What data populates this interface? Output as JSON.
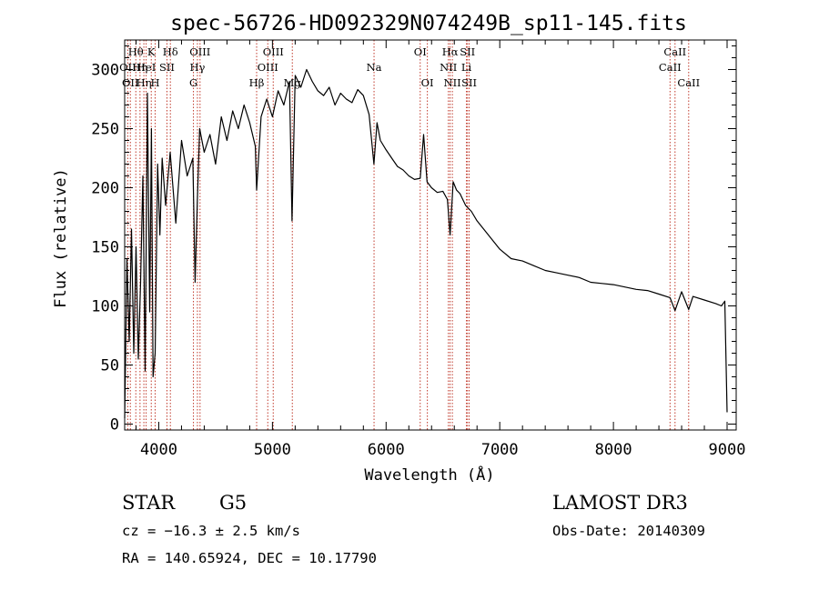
{
  "chart_data": {
    "type": "line",
    "title": "spec-56726-HD092329N074249B_sp11-145.fits",
    "xlabel": "Wavelength (Å)",
    "ylabel": "Flux (relative)",
    "xlim": [
      3700,
      9080
    ],
    "ylim": [
      -5,
      325
    ],
    "x_ticks": [
      4000,
      5000,
      6000,
      7000,
      8000,
      9000
    ],
    "y_ticks": [
      0,
      50,
      100,
      150,
      200,
      250,
      300
    ],
    "series": [
      {
        "x": [
          3700,
          3720,
          3740,
          3760,
          3780,
          3800,
          3820,
          3840,
          3860,
          3880,
          3900,
          3920,
          3935,
          3950,
          3968,
          3990,
          4010,
          4030,
          4060,
          4100,
          4150,
          4200,
          4250,
          4300,
          4320,
          4340,
          4360,
          4400,
          4450,
          4500,
          4550,
          4600,
          4650,
          4700,
          4750,
          4800,
          4850,
          4861,
          4900,
          4950,
          5000,
          5050,
          5100,
          5150,
          5172,
          5200,
          5250,
          5300,
          5350,
          5400,
          5450,
          5500,
          5550,
          5600,
          5650,
          5700,
          5750,
          5800,
          5850,
          5893,
          5920,
          5950,
          6000,
          6050,
          6100,
          6150,
          6200,
          6250,
          6300,
          6330,
          6360,
          6400,
          6450,
          6500,
          6540,
          6563,
          6590,
          6620,
          6650,
          6700,
          6750,
          6800,
          6850,
          6900,
          6950,
          7000,
          7100,
          7200,
          7300,
          7400,
          7500,
          7600,
          7700,
          7800,
          7900,
          8000,
          8100,
          8200,
          8300,
          8400,
          8498,
          8542,
          8600,
          8662,
          8700,
          8800,
          8900,
          8950,
          8980,
          9000
        ],
        "y": [
          5,
          140,
          70,
          165,
          60,
          150,
          55,
          120,
          210,
          45,
          280,
          95,
          250,
          40,
          60,
          220,
          160,
          225,
          185,
          230,
          170,
          240,
          210,
          225,
          120,
          190,
          250,
          230,
          245,
          220,
          260,
          240,
          265,
          250,
          270,
          255,
          235,
          198,
          260,
          275,
          260,
          282,
          270,
          290,
          172,
          295,
          285,
          300,
          290,
          282,
          278,
          285,
          270,
          280,
          275,
          272,
          283,
          278,
          262,
          220,
          255,
          240,
          232,
          225,
          218,
          215,
          210,
          207,
          208,
          245,
          205,
          200,
          196,
          197,
          190,
          160,
          205,
          198,
          195,
          185,
          180,
          172,
          166,
          160,
          154,
          148,
          140,
          138,
          134,
          130,
          128,
          126,
          124,
          120,
          119,
          118,
          116,
          114,
          113,
          110,
          107,
          96,
          112,
          97,
          108,
          105,
          102,
          100,
          104,
          10
        ]
      }
    ],
    "emission_lines": [
      {
        "wave": 3727,
        "label": "OII",
        "row": 2
      },
      {
        "wave": 3750,
        "label": "OII",
        "row": 3
      },
      {
        "wave": 3798,
        "label": "Hθ",
        "row": 1
      },
      {
        "wave": 3835,
        "label": "Hη",
        "row": 2
      },
      {
        "wave": 3869,
        "label": "Hη",
        "row": 3
      },
      {
        "wave": 3889,
        "label": "HeI",
        "row": 2
      },
      {
        "wave": 3934,
        "label": "K",
        "row": 1
      },
      {
        "wave": 3968,
        "label": "H",
        "row": 3
      },
      {
        "wave": 4072,
        "label": "SII",
        "row": 2
      },
      {
        "wave": 4102,
        "label": "Hδ",
        "row": 1
      },
      {
        "wave": 4305,
        "label": "G",
        "row": 3
      },
      {
        "wave": 4340,
        "label": "Hγ",
        "row": 2
      },
      {
        "wave": 4363,
        "label": "OIII",
        "row": 1
      },
      {
        "wave": 4861,
        "label": "Hβ",
        "row": 3
      },
      {
        "wave": 4959,
        "label": "OIII",
        "row": 2
      },
      {
        "wave": 5007,
        "label": "OIII",
        "row": 1
      },
      {
        "wave": 5175,
        "label": "Mg",
        "row": 3
      },
      {
        "wave": 5894,
        "label": "Na",
        "row": 2
      },
      {
        "wave": 6300,
        "label": "OI",
        "row": 1
      },
      {
        "wave": 6363,
        "label": "OI",
        "row": 3
      },
      {
        "wave": 6548,
        "label": "NII",
        "row": 2
      },
      {
        "wave": 6563,
        "label": "Hα",
        "row": 1
      },
      {
        "wave": 6583,
        "label": "NII",
        "row": 3
      },
      {
        "wave": 6707,
        "label": "Li",
        "row": 2
      },
      {
        "wave": 6716,
        "label": "SII",
        "row": 1
      },
      {
        "wave": 6731,
        "label": "SII",
        "row": 3
      },
      {
        "wave": 8498,
        "label": "CaII",
        "row": 2
      },
      {
        "wave": 8542,
        "label": "CaII",
        "row": 1
      },
      {
        "wave": 8662,
        "label": "CaII",
        "row": 3
      }
    ]
  },
  "info": {
    "object_class": "STAR",
    "subclass": "G5",
    "survey": "LAMOST DR3",
    "redshift": "cz = −16.3 ± 2.5 km/s",
    "obs_date": "Obs-Date: 20140309",
    "coords": "RA = 140.65924, DEC =  10.17790"
  }
}
